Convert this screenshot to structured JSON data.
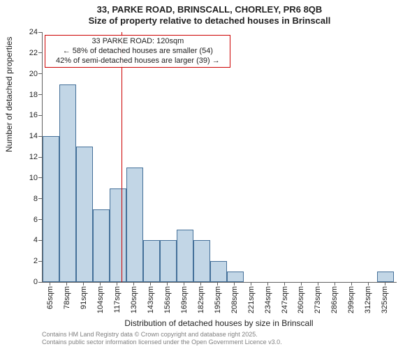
{
  "title": {
    "line1": "33, PARKE ROAD, BRINSCALL, CHORLEY, PR6 8QB",
    "line2": "Size of property relative to detached houses in Brinscall"
  },
  "chart": {
    "type": "histogram",
    "background_color": "#ffffff",
    "plot_border_color": "#606060",
    "bar_fill_color": "rgba(70,130,180,0.33)",
    "bar_border_color": "#447099",
    "marker_line_color": "#cc0000",
    "y_axis": {
      "label": "Number of detached properties",
      "min": 0,
      "max": 24,
      "tick_step": 2,
      "label_fontsize": 12,
      "tick_fontsize": 11
    },
    "x_axis": {
      "label": "Distribution of detached houses by size in Brinscall",
      "min": 58.5,
      "max": 333.5,
      "tick_start": 65,
      "tick_step": 13,
      "tick_suffix": "sqm",
      "label_fontsize": 12,
      "tick_fontsize": 11
    },
    "bars": {
      "bin_width": 13,
      "first_center": 65,
      "counts": [
        14,
        19,
        13,
        7,
        9,
        11,
        4,
        4,
        5,
        4,
        2,
        1,
        0,
        0,
        0,
        0,
        0,
        0,
        0,
        0,
        1
      ]
    },
    "marker": {
      "x_value": 120,
      "annot_line1": "33 PARKE ROAD: 120sqm",
      "annot_line2": "← 58% of detached houses are smaller (54)",
      "annot_line3": "42% of semi-detached houses are larger (39) →"
    }
  },
  "credits": {
    "line1": "Contains HM Land Registry data © Crown copyright and database right 2025.",
    "line2": "Contains public sector information licensed under the Open Government Licence v3.0."
  }
}
